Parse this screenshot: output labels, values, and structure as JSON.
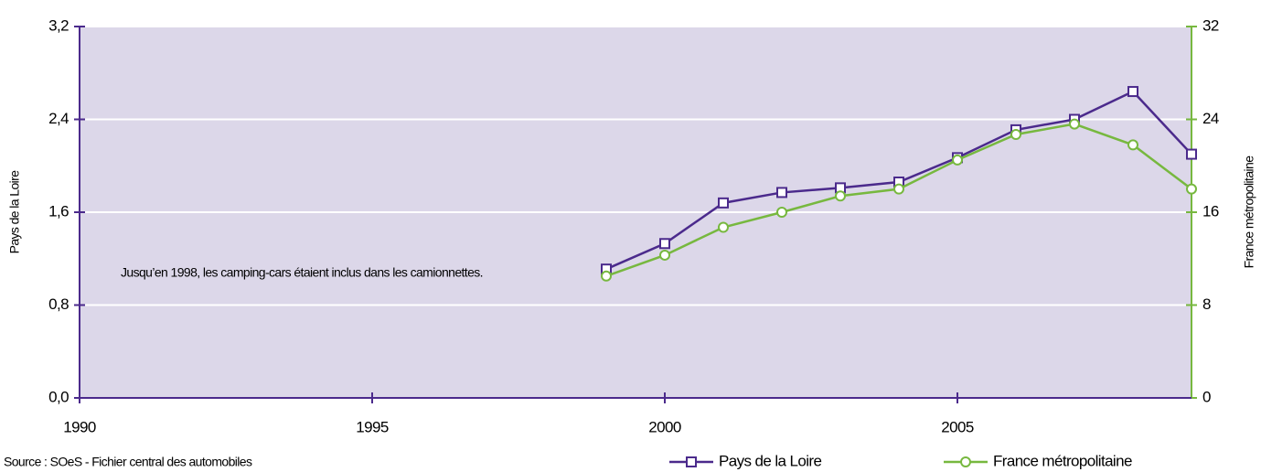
{
  "chart_data": {
    "type": "line",
    "x": [
      1999,
      2000,
      2001,
      2002,
      2003,
      2004,
      2005,
      2006,
      2007,
      2008,
      2009
    ],
    "series": [
      {
        "name": "Pays de la Loire",
        "color": "#4b2a8c",
        "marker": "square",
        "axis": "y",
        "values": [
          1.11,
          1.33,
          1.68,
          1.77,
          1.81,
          1.86,
          2.07,
          2.31,
          2.4,
          2.64,
          2.1
        ]
      },
      {
        "name": "France métropolitaine",
        "color": "#77b83f",
        "marker": "circle",
        "axis": "y2",
        "values": [
          10.5,
          12.3,
          14.7,
          16.0,
          17.4,
          18.0,
          20.5,
          22.7,
          23.6,
          21.8,
          18.0
        ]
      }
    ],
    "xlim": [
      1990,
      2009
    ],
    "xticks": [
      1990,
      1995,
      2000,
      2005
    ],
    "ylim": [
      0,
      3.2
    ],
    "yticks": [
      {
        "value": 0,
        "label": "0,0"
      },
      {
        "value": 0.8,
        "label": "0,8"
      },
      {
        "value": 1.6,
        "label": "1,6"
      },
      {
        "value": 2.4,
        "label": "2,4"
      },
      {
        "value": 3.2,
        "label": "3,2"
      }
    ],
    "y2lim": [
      0,
      32
    ],
    "y2ticks": [
      0,
      8,
      16,
      24,
      32
    ],
    "ylabel": "Pays de la Loire",
    "y2label": "France métropolitaine",
    "annotation": "Jusqu’en 1998, les camping-cars étaient inclus dans les camionnettes.",
    "source": "Source : SOeS - Fichier central des automobiles",
    "grid": true,
    "legend": "bottom-right",
    "background": "#dcd7e9"
  }
}
